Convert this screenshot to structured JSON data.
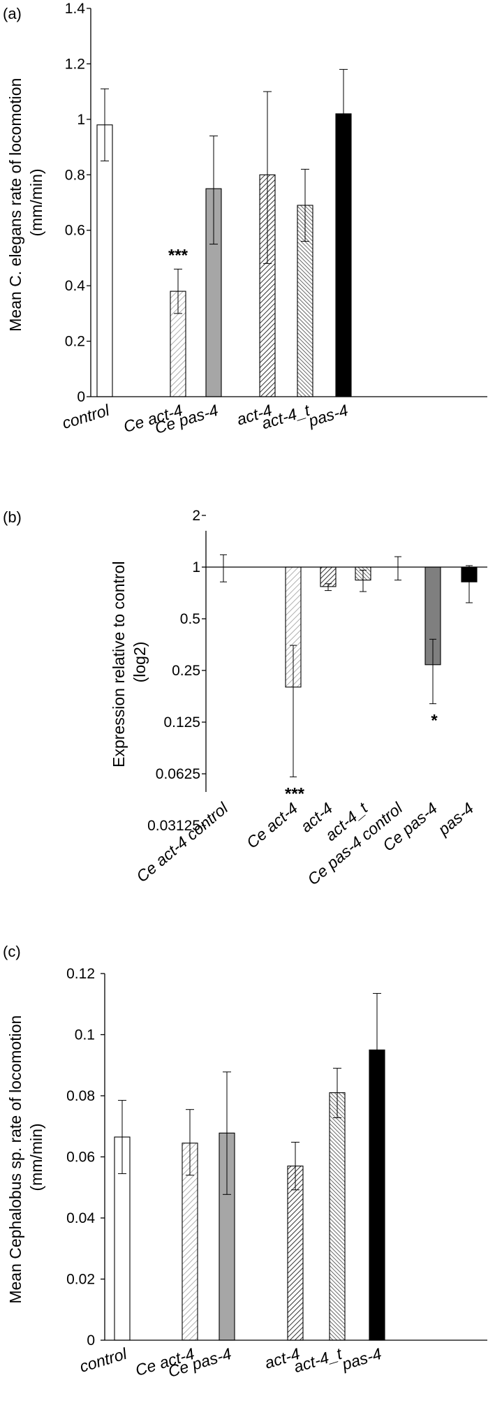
{
  "colors": {
    "control": "#ffffff",
    "ce_act4": "#e2e2e2",
    "ce_pas4": "#a6a6a6",
    "act4": "#7a7a7a",
    "act4_t": "#8a8a8a",
    "pas4": "#000000"
  },
  "chart_data": [
    {
      "panel": "(a)",
      "type": "bar",
      "ylabel": [
        "Mean C. elegans rate of locomotion",
        "(mm/min)"
      ],
      "ylim": [
        0,
        1.4
      ],
      "yticks": [
        "0",
        "0.2",
        "0.4",
        "0.6",
        "0.8",
        "1",
        "1.2",
        "1.4"
      ],
      "bars": [
        {
          "label": "control",
          "value": 0.98,
          "err_low": 0.85,
          "err_high": 1.11,
          "fill": "white",
          "sig": ""
        },
        {
          "label": "Ce act-4",
          "value": 0.38,
          "err_low": 0.3,
          "err_high": 0.46,
          "fill": "light-hatch",
          "sig": "***"
        },
        {
          "label": "Ce pas-4",
          "value": 0.75,
          "err_low": 0.55,
          "err_high": 0.94,
          "fill": "gray",
          "sig": ""
        },
        {
          "label": "act-4",
          "value": 0.8,
          "err_low": 0.48,
          "err_high": 1.1,
          "fill": "dark-hatch",
          "sig": ""
        },
        {
          "label": "act-4_t",
          "value": 0.69,
          "err_low": 0.56,
          "err_high": 0.82,
          "fill": "dense-hatch",
          "sig": ""
        },
        {
          "label": "pas-4",
          "value": 1.02,
          "err_low": 0.87,
          "err_high": 1.18,
          "fill": "black",
          "sig": ""
        }
      ]
    },
    {
      "panel": "(b)",
      "type": "bar",
      "yscale": "log2",
      "ylabel": [
        "Expression relative to control",
        "(log2)"
      ],
      "ylim": [
        0.03125,
        2
      ],
      "yticks": [
        "2",
        "1",
        "0.5",
        "0.25",
        "0.125",
        "0.0625",
        "0.03125"
      ],
      "baseline": 1,
      "bars": [
        {
          "label": "Ce act-4 control",
          "value": 1,
          "err_low": 0.82,
          "err_high": 1.18,
          "fill": "white",
          "sig": ""
        },
        {
          "label": "Ce act-4",
          "value": 0.2,
          "err_low": 0.06,
          "err_high": 0.35,
          "fill": "light-hatch",
          "sig": "***"
        },
        {
          "label": "act-4",
          "value": 0.77,
          "err_low": 0.73,
          "err_high": 0.8,
          "fill": "dark-hatch",
          "sig": ""
        },
        {
          "label": "act-4_t",
          "value": 0.84,
          "err_low": 0.72,
          "err_high": 0.96,
          "fill": "dense-hatch",
          "sig": ""
        },
        {
          "label": "Ce pas-4 control",
          "value": 1,
          "err_low": 0.84,
          "err_high": 1.15,
          "fill": "white",
          "sig": ""
        },
        {
          "label": "Ce pas-4",
          "value": 0.27,
          "err_low": 0.16,
          "err_high": 0.38,
          "fill": "dark-gray",
          "sig": "*"
        },
        {
          "label": "pas-4",
          "value": 0.82,
          "err_low": 0.62,
          "err_high": 1.02,
          "fill": "black",
          "sig": ""
        }
      ]
    },
    {
      "panel": "(c)",
      "type": "bar",
      "ylabel": [
        "Mean Cephalobus sp. rate of locomotion",
        "(mm/min)"
      ],
      "ylim": [
        0,
        0.12
      ],
      "yticks": [
        "0",
        "0.02",
        "0.04",
        "0.06",
        "0.08",
        "0.1",
        "0.12"
      ],
      "bars": [
        {
          "label": "control",
          "value": 0.0665,
          "err_low": 0.0545,
          "err_high": 0.0785,
          "fill": "white",
          "sig": ""
        },
        {
          "label": "Ce act-4",
          "value": 0.0645,
          "err_low": 0.054,
          "err_high": 0.0755,
          "fill": "light-hatch",
          "sig": ""
        },
        {
          "label": "Ce pas-4",
          "value": 0.0678,
          "err_low": 0.0477,
          "err_high": 0.0878,
          "fill": "gray",
          "sig": ""
        },
        {
          "label": "act-4",
          "value": 0.057,
          "err_low": 0.0492,
          "err_high": 0.0648,
          "fill": "dark-hatch",
          "sig": ""
        },
        {
          "label": "act-4_t",
          "value": 0.081,
          "err_low": 0.0728,
          "err_high": 0.089,
          "fill": "dense-hatch",
          "sig": ""
        },
        {
          "label": "pas-4",
          "value": 0.095,
          "err_low": 0.0765,
          "err_high": 0.1135,
          "fill": "black",
          "sig": ""
        }
      ]
    }
  ]
}
